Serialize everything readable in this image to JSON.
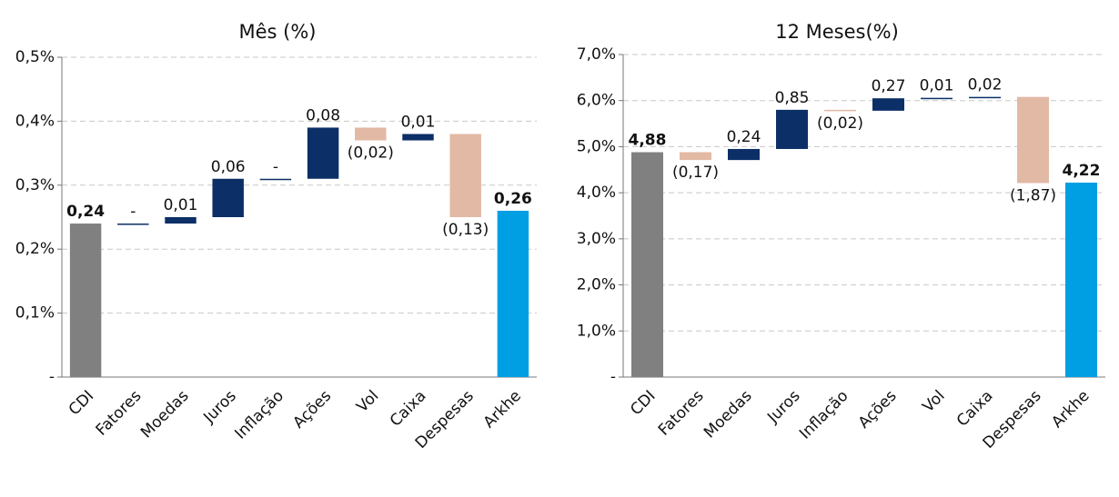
{
  "chart_data": [
    {
      "type": "waterfall",
      "title": "Mês (%)",
      "categories": [
        "CDI",
        "Fatores",
        "Moedas",
        "Juros",
        "Inflação",
        "Ações",
        "Vol",
        "Caixa",
        "Despesas",
        "Arkhe"
      ],
      "values": [
        0.24,
        0,
        0.01,
        0.06,
        0,
        0.08,
        -0.02,
        0.01,
        -0.13,
        0.26
      ],
      "value_labels": [
        "0,24",
        "-",
        "0,01",
        "0,06",
        "-",
        "0,08",
        "(0,02)",
        "0,01",
        "(0,13)",
        "0,26"
      ],
      "ylim": [
        0,
        0.5
      ],
      "yticks": [
        {
          "value": 0,
          "label": "-"
        },
        {
          "value": 0.1,
          "label": "0,1%"
        },
        {
          "value": 0.2,
          "label": "0,2%"
        },
        {
          "value": 0.3,
          "label": "0,3%"
        },
        {
          "value": 0.4,
          "label": "0,4%"
        },
        {
          "value": 0.5,
          "label": "0,5%"
        }
      ],
      "grid": true,
      "colors": {
        "start": "#808080",
        "end": "#009fe3",
        "up": "#0b2f66",
        "down": "#e2b9a4"
      }
    },
    {
      "type": "waterfall",
      "title": "12 Meses(%)",
      "categories": [
        "CDI",
        "Fatores",
        "Moedas",
        "Juros",
        "Inflação",
        "Ações",
        "Vol",
        "Caixa",
        "Despesas",
        "Arkhe"
      ],
      "values": [
        4.88,
        -0.17,
        0.24,
        0.85,
        -0.02,
        0.27,
        0.01,
        0.02,
        -1.87,
        4.22
      ],
      "value_labels": [
        "4,88",
        "(0,17)",
        "0,24",
        "0,85",
        "(0,02)",
        "0,27",
        "0,01",
        "0,02",
        "(1,87)",
        "4,22"
      ],
      "ylim": [
        0,
        7
      ],
      "yticks": [
        {
          "value": 0,
          "label": "-"
        },
        {
          "value": 1,
          "label": "1,0%"
        },
        {
          "value": 2,
          "label": "2,0%"
        },
        {
          "value": 3,
          "label": "3,0%"
        },
        {
          "value": 4,
          "label": "4,0%"
        },
        {
          "value": 5,
          "label": "5,0%"
        },
        {
          "value": 6,
          "label": "6,0%"
        },
        {
          "value": 7,
          "label": "7,0%"
        }
      ],
      "grid": true,
      "colors": {
        "start": "#808080",
        "end": "#009fe3",
        "up": "#0b2f66",
        "down": "#e2b9a4"
      }
    }
  ]
}
